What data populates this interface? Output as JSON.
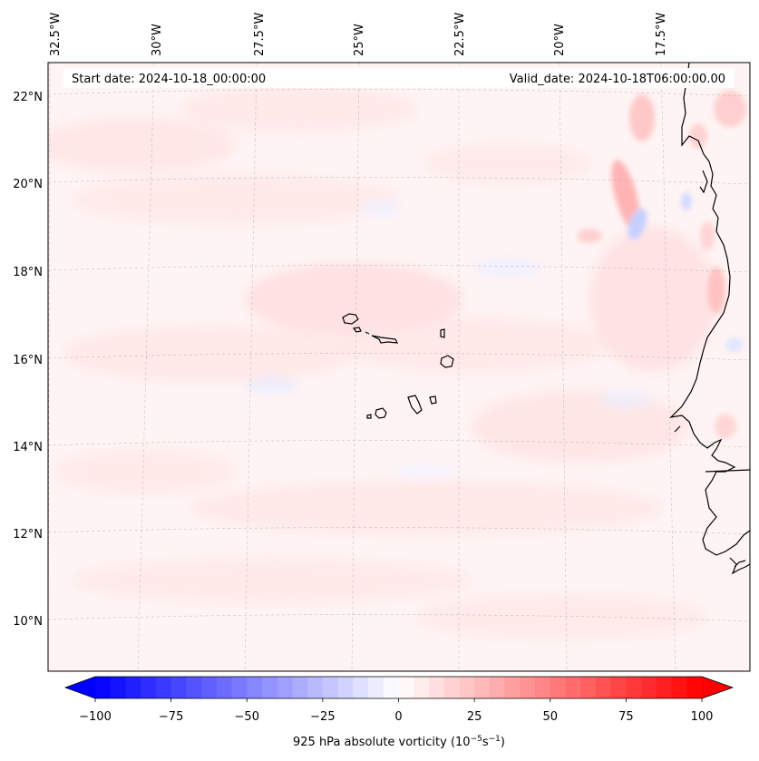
{
  "header": {
    "start_date": "Start date: 2024-10-18_00:00:00",
    "valid_date": "Valid_date: 2024-10-18T06:00:00.00"
  },
  "lon_labels": [
    "32.5°W",
    "30°W",
    "27.5°W",
    "25°W",
    "22.5°W",
    "20°W",
    "17.5°W"
  ],
  "lat_labels": [
    "22°N",
    "20°N",
    "18°N",
    "16°N",
    "14°N",
    "12°N",
    "10°N"
  ],
  "colorbar": {
    "label_main": "925 hPa absolute vorticity (10",
    "label_exp1": "−5",
    "label_mid": "s",
    "label_exp2": "−1",
    "label_end": ")",
    "tick_labels": [
      "−100",
      "−75",
      "−50",
      "−25",
      "0",
      "25",
      "50",
      "75",
      "100"
    ],
    "min": -100,
    "max": 100,
    "step": 5,
    "neg_color": "#0000ff",
    "zero_color": "#ffffff",
    "pos_color": "#ff0000"
  }
}
